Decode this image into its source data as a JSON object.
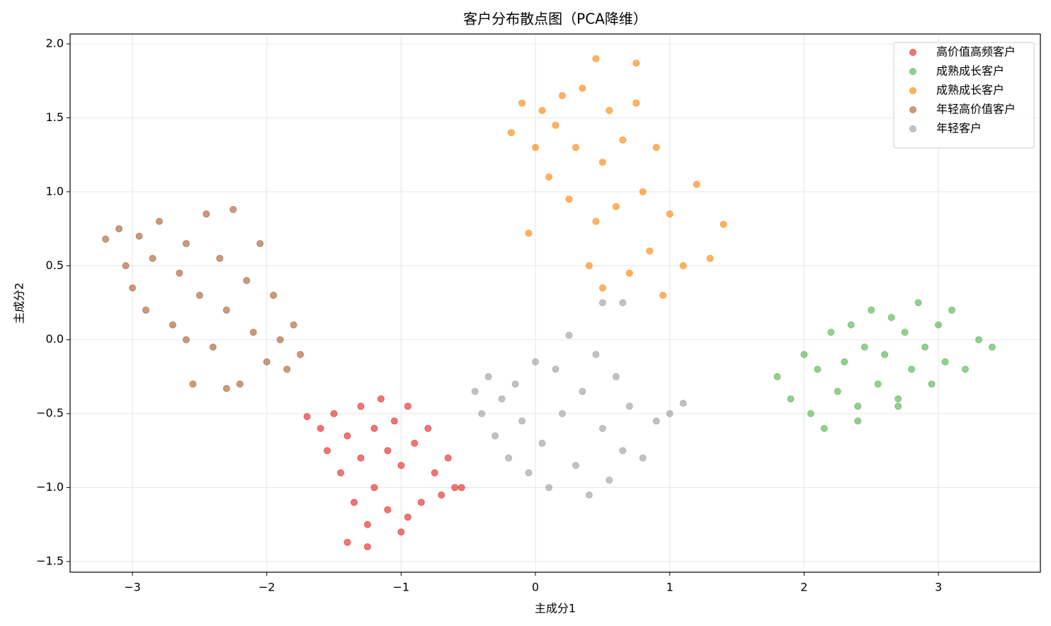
{
  "chart_data": {
    "type": "scatter",
    "title": "客户分布散点图（PCA降维）",
    "x_label": "主成分1",
    "y_label": "主成分2",
    "xlim": [
      -3.464,
      3.759
    ],
    "ylim": [
      -1.572,
      2.067
    ],
    "xticks": [
      {
        "value": -3,
        "label": "−3"
      },
      {
        "value": -2,
        "label": "−2"
      },
      {
        "value": -1,
        "label": "−1"
      },
      0,
      1,
      2,
      3
    ],
    "yticks": [
      {
        "value": -1.5,
        "label": "−1.5"
      },
      {
        "value": -1.0,
        "label": "−1.0"
      },
      {
        "value": -0.5,
        "label": "−0.5"
      },
      {
        "value": 0.0,
        "label": "0.0"
      },
      0.5,
      {
        "value": 1.0,
        "label": "1.0"
      },
      1.5,
      {
        "value": 2.0,
        "label": "2.0"
      }
    ],
    "grid": true,
    "legend": "upper right",
    "opacity": 0.6,
    "series": [
      {
        "name": "高价值高频客户",
        "color": "#e41a1c",
        "x": [
          -1.7,
          -1.6,
          -1.55,
          -1.5,
          -1.45,
          -1.4,
          -1.35,
          -1.3,
          -1.3,
          -1.25,
          -1.2,
          -1.2,
          -1.15,
          -1.1,
          -1.1,
          -1.05,
          -1.0,
          -1.0,
          -0.95,
          -0.9,
          -0.85,
          -0.8,
          -0.75,
          -0.7,
          -0.65,
          -0.6,
          -0.55,
          -1.4,
          -1.25,
          -0.95
        ],
        "values": [
          -0.52,
          -0.6,
          -0.75,
          -0.5,
          -0.9,
          -0.65,
          -1.1,
          -0.45,
          -0.8,
          -1.25,
          -0.6,
          -1.0,
          -0.4,
          -0.75,
          -1.15,
          -0.55,
          -0.85,
          -1.3,
          -0.45,
          -0.7,
          -1.1,
          -0.6,
          -0.9,
          -1.05,
          -0.8,
          -1.0,
          -1.0,
          -1.37,
          -1.4,
          -1.2
        ]
      },
      {
        "name": "成熟成长客户",
        "color": "#4daf4a",
        "x": [
          1.8,
          1.9,
          2.0,
          2.05,
          2.1,
          2.15,
          2.2,
          2.25,
          2.3,
          2.35,
          2.4,
          2.45,
          2.5,
          2.55,
          2.6,
          2.65,
          2.7,
          2.75,
          2.8,
          2.85,
          2.9,
          2.95,
          3.0,
          3.05,
          3.1,
          3.2,
          3.3,
          3.4,
          2.4,
          2.7
        ],
        "values": [
          -0.25,
          -0.4,
          -0.1,
          -0.5,
          -0.2,
          -0.6,
          0.05,
          -0.35,
          -0.15,
          0.1,
          -0.45,
          -0.05,
          0.2,
          -0.3,
          -0.1,
          0.15,
          -0.45,
          0.05,
          -0.2,
          0.25,
          -0.05,
          -0.3,
          0.1,
          -0.15,
          0.2,
          -0.2,
          0.0,
          -0.05,
          -0.55,
          -0.4
        ]
      },
      {
        "name": "成熟成长客户",
        "color": "#ff7f00",
        "x": [
          -0.18,
          -0.1,
          -0.05,
          0.0,
          0.05,
          0.1,
          0.15,
          0.2,
          0.25,
          0.3,
          0.35,
          0.4,
          0.45,
          0.5,
          0.5,
          0.55,
          0.6,
          0.65,
          0.7,
          0.75,
          0.8,
          0.85,
          0.9,
          0.95,
          1.0,
          1.1,
          1.2,
          1.3,
          1.4,
          0.45,
          0.75
        ],
        "values": [
          1.4,
          1.6,
          0.72,
          1.3,
          1.55,
          1.1,
          1.45,
          1.65,
          0.95,
          1.3,
          1.7,
          0.5,
          1.9,
          1.2,
          0.35,
          1.55,
          0.9,
          1.35,
          0.45,
          1.6,
          1.0,
          0.6,
          1.3,
          0.3,
          0.85,
          0.5,
          1.05,
          0.55,
          0.78,
          0.8,
          1.87
        ]
      },
      {
        "name": "年轻高价值客户",
        "color": "#a65628",
        "x": [
          -3.2,
          -3.1,
          -3.05,
          -3.0,
          -2.95,
          -2.9,
          -2.85,
          -2.8,
          -2.7,
          -2.65,
          -2.6,
          -2.55,
          -2.5,
          -2.45,
          -2.4,
          -2.35,
          -2.3,
          -2.25,
          -2.2,
          -2.15,
          -2.1,
          -2.05,
          -2.0,
          -1.95,
          -1.9,
          -1.85,
          -1.8,
          -1.75,
          -2.6,
          -2.3
        ],
        "values": [
          0.68,
          0.75,
          0.5,
          0.35,
          0.7,
          0.2,
          0.55,
          0.8,
          0.1,
          0.45,
          0.65,
          -0.3,
          0.3,
          0.85,
          -0.05,
          0.55,
          0.2,
          0.88,
          -0.3,
          0.4,
          0.05,
          0.65,
          -0.15,
          0.3,
          0.0,
          -0.2,
          0.1,
          -0.1,
          0.0,
          -0.33
        ]
      },
      {
        "name": "年轻客户",
        "color": "#999999",
        "x": [
          -0.45,
          -0.4,
          -0.35,
          -0.3,
          -0.25,
          -0.2,
          -0.15,
          -0.1,
          -0.05,
          0.0,
          0.05,
          0.1,
          0.15,
          0.2,
          0.25,
          0.3,
          0.35,
          0.4,
          0.45,
          0.5,
          0.55,
          0.6,
          0.65,
          0.7,
          0.8,
          0.9,
          1.0,
          1.1,
          0.5,
          0.65
        ],
        "values": [
          -0.35,
          -0.5,
          -0.25,
          -0.65,
          -0.4,
          -0.8,
          -0.3,
          -0.55,
          -0.9,
          -0.15,
          -0.7,
          -1.0,
          -0.2,
          -0.5,
          0.03,
          -0.85,
          -0.35,
          -1.05,
          -0.1,
          -0.6,
          -0.95,
          -0.25,
          -0.75,
          -0.45,
          -0.8,
          -0.55,
          -0.5,
          -0.43,
          0.25,
          0.25
        ]
      }
    ]
  }
}
